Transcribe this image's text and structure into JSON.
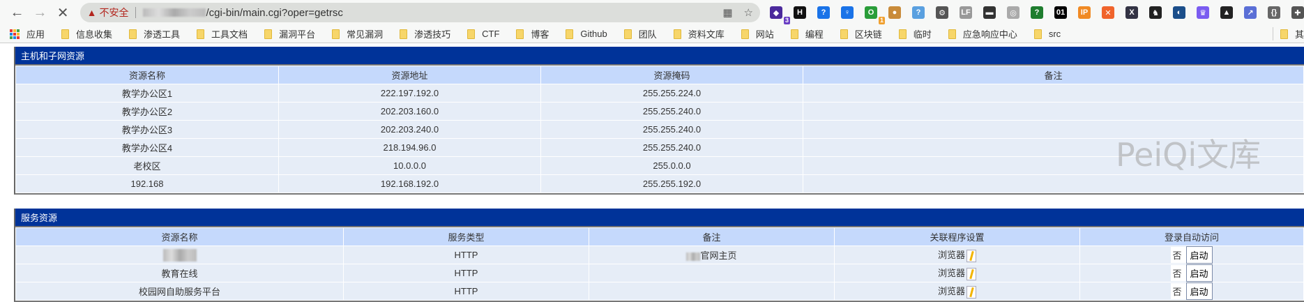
{
  "browser": {
    "url_security": "不安全",
    "url_path": "/cgi-bin/main.cgi?oper=getrsc",
    "extensions": [
      {
        "name": "extension-1",
        "badge": "3",
        "color": "#4b2a9c",
        "glyph": "◆"
      },
      {
        "name": "extension-h",
        "color": "#111",
        "glyph": "H"
      },
      {
        "name": "extension-help",
        "color": "#1a73e8",
        "glyph": "?"
      },
      {
        "name": "extension-key",
        "color": "#1a73e8",
        "glyph": "♀"
      },
      {
        "name": "extension-green",
        "badge": "1",
        "color": "#2a9d3a",
        "glyph": "O"
      },
      {
        "name": "extension-cookie",
        "color": "#c98b3a",
        "glyph": "●"
      },
      {
        "name": "extension-help2",
        "color": "#5aa0e0",
        "glyph": "?"
      },
      {
        "name": "extension-gear",
        "color": "#555",
        "glyph": "⚙"
      },
      {
        "name": "extension-lf",
        "color": "#999",
        "glyph": "LF"
      },
      {
        "name": "extension-mask",
        "color": "#333",
        "glyph": "▬"
      },
      {
        "name": "extension-circle",
        "color": "#aaa",
        "glyph": "◎"
      },
      {
        "name": "extension-green2",
        "color": "#1e7d2e",
        "glyph": "?"
      },
      {
        "name": "extension-01",
        "color": "#000",
        "glyph": "01"
      },
      {
        "name": "extension-ip",
        "color": "#f08a24",
        "glyph": "IP"
      },
      {
        "name": "extension-orange",
        "color": "#f0642c",
        "glyph": "✕"
      },
      {
        "name": "extension-x",
        "color": "#334",
        "glyph": "X"
      },
      {
        "name": "extension-fox",
        "color": "#222",
        "glyph": "♞"
      },
      {
        "name": "extension-blue",
        "color": "#1b4e8a",
        "glyph": "◐"
      },
      {
        "name": "extension-crown",
        "color": "#7a5cf0",
        "glyph": "♛"
      },
      {
        "name": "extension-dark",
        "color": "#222",
        "glyph": "▲"
      },
      {
        "name": "extension-arrow",
        "color": "#5a6fd6",
        "glyph": "↗"
      },
      {
        "name": "extension-json",
        "color": "#666",
        "glyph": "{}"
      },
      {
        "name": "extensions-puzzle",
        "color": "#555",
        "glyph": "✚"
      }
    ],
    "bookmarks": [
      "应用",
      "信息收集",
      "渗透工具",
      "工具文档",
      "漏洞平台",
      "常见漏洞",
      "渗透技巧",
      "CTF",
      "博客",
      "Github",
      "团队",
      "资料文库",
      "网站",
      "编程",
      "区块链",
      "临时",
      "应急响应中心",
      "src"
    ],
    "other_bookmarks": "其"
  },
  "hosts": {
    "title": "主机和子网资源",
    "headers": [
      "资源名称",
      "资源地址",
      "资源掩码",
      "备注"
    ],
    "rows": [
      [
        "教学办公区1",
        "222.197.192.0",
        "255.255.224.0",
        ""
      ],
      [
        "教学办公区2",
        "202.203.160.0",
        "255.255.240.0",
        ""
      ],
      [
        "教学办公区3",
        "202.203.240.0",
        "255.255.240.0",
        ""
      ],
      [
        "教学办公区4",
        "218.194.96.0",
        "255.255.240.0",
        ""
      ],
      [
        "老校区",
        "10.0.0.0",
        "255.0.0.0",
        ""
      ],
      [
        "192.168",
        "192.168.192.0",
        "255.255.192.0",
        ""
      ]
    ]
  },
  "services": {
    "title": "服务资源",
    "headers": [
      "资源名称",
      "服务类型",
      "备注",
      "关联程序设置",
      "登录自动访问"
    ],
    "rows": [
      {
        "name": "",
        "name_blurred": true,
        "type": "HTTP",
        "remark": "官网主页",
        "remark_blurred_prefix": true,
        "program": "浏览器",
        "auto": "否",
        "start": "启动"
      },
      {
        "name": "教育在线",
        "type": "HTTP",
        "remark": "",
        "program": "浏览器",
        "auto": "否",
        "start": "启动"
      },
      {
        "name": "校园网自助服务平台",
        "type": "HTTP",
        "remark": "",
        "program": "浏览器",
        "auto": "否",
        "start": "启动"
      }
    ]
  },
  "watermark": "PeiQi文库"
}
